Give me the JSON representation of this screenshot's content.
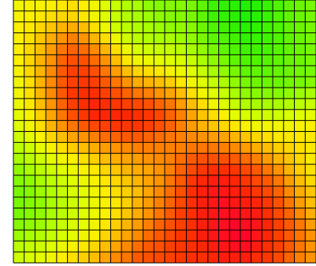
{
  "chart_data": {
    "type": "heatmap",
    "title": "",
    "xlabel": "",
    "ylabel": "",
    "grid": true,
    "legend": "none",
    "colorscale": [
      "#11f000",
      "#66f500",
      "#aaff00",
      "#ddff00",
      "#ffee00",
      "#ffc000",
      "#ff9000",
      "#ff5a00",
      "#ff2a00",
      "#ff0030"
    ],
    "value_range": [
      0,
      1
    ],
    "rows": 24,
    "cols": 28,
    "grid_color": "#000000",
    "values": [
      [
        0.4,
        0.42,
        0.42,
        0.44,
        0.46,
        0.48,
        0.44,
        0.4,
        0.34,
        0.28,
        0.24,
        0.22,
        0.18,
        0.16,
        0.16,
        0.16,
        0.14,
        0.1,
        0.06,
        0.04,
        0.03,
        0.02,
        0.03,
        0.05,
        0.08,
        0.1,
        0.12,
        0.14
      ],
      [
        0.42,
        0.44,
        0.46,
        0.48,
        0.5,
        0.5,
        0.46,
        0.4,
        0.34,
        0.28,
        0.24,
        0.22,
        0.2,
        0.18,
        0.16,
        0.16,
        0.14,
        0.1,
        0.06,
        0.04,
        0.03,
        0.02,
        0.03,
        0.05,
        0.08,
        0.1,
        0.12,
        0.14
      ],
      [
        0.44,
        0.46,
        0.5,
        0.54,
        0.58,
        0.6,
        0.56,
        0.48,
        0.38,
        0.3,
        0.26,
        0.24,
        0.22,
        0.2,
        0.18,
        0.18,
        0.16,
        0.12,
        0.08,
        0.06,
        0.04,
        0.03,
        0.04,
        0.06,
        0.08,
        0.1,
        0.12,
        0.14
      ],
      [
        0.44,
        0.48,
        0.54,
        0.6,
        0.66,
        0.7,
        0.66,
        0.58,
        0.48,
        0.38,
        0.3,
        0.26,
        0.24,
        0.22,
        0.22,
        0.2,
        0.18,
        0.14,
        0.1,
        0.08,
        0.06,
        0.04,
        0.05,
        0.06,
        0.08,
        0.1,
        0.12,
        0.14
      ],
      [
        0.44,
        0.5,
        0.56,
        0.64,
        0.72,
        0.76,
        0.74,
        0.68,
        0.58,
        0.48,
        0.38,
        0.32,
        0.3,
        0.28,
        0.28,
        0.26,
        0.22,
        0.18,
        0.14,
        0.1,
        0.08,
        0.06,
        0.06,
        0.07,
        0.09,
        0.1,
        0.12,
        0.14
      ],
      [
        0.44,
        0.5,
        0.58,
        0.66,
        0.76,
        0.8,
        0.8,
        0.74,
        0.66,
        0.56,
        0.46,
        0.4,
        0.38,
        0.36,
        0.34,
        0.32,
        0.28,
        0.22,
        0.18,
        0.14,
        0.1,
        0.08,
        0.08,
        0.09,
        0.1,
        0.11,
        0.12,
        0.14
      ],
      [
        0.42,
        0.5,
        0.58,
        0.68,
        0.78,
        0.84,
        0.84,
        0.8,
        0.72,
        0.64,
        0.56,
        0.5,
        0.48,
        0.46,
        0.42,
        0.38,
        0.34,
        0.28,
        0.22,
        0.18,
        0.14,
        0.1,
        0.1,
        0.1,
        0.11,
        0.12,
        0.13,
        0.14
      ],
      [
        0.4,
        0.48,
        0.58,
        0.68,
        0.78,
        0.84,
        0.86,
        0.84,
        0.78,
        0.72,
        0.66,
        0.6,
        0.58,
        0.56,
        0.52,
        0.46,
        0.4,
        0.34,
        0.28,
        0.22,
        0.18,
        0.14,
        0.12,
        0.12,
        0.12,
        0.13,
        0.14,
        0.16
      ],
      [
        0.4,
        0.48,
        0.58,
        0.68,
        0.78,
        0.86,
        0.88,
        0.88,
        0.84,
        0.8,
        0.76,
        0.72,
        0.7,
        0.66,
        0.62,
        0.56,
        0.48,
        0.4,
        0.34,
        0.28,
        0.22,
        0.18,
        0.16,
        0.16,
        0.16,
        0.18,
        0.2,
        0.22
      ],
      [
        0.38,
        0.46,
        0.56,
        0.66,
        0.76,
        0.84,
        0.88,
        0.9,
        0.88,
        0.86,
        0.84,
        0.82,
        0.8,
        0.76,
        0.72,
        0.64,
        0.56,
        0.48,
        0.4,
        0.34,
        0.28,
        0.24,
        0.22,
        0.22,
        0.22,
        0.24,
        0.26,
        0.28
      ],
      [
        0.36,
        0.42,
        0.52,
        0.62,
        0.72,
        0.8,
        0.86,
        0.9,
        0.9,
        0.9,
        0.9,
        0.88,
        0.86,
        0.82,
        0.76,
        0.7,
        0.62,
        0.54,
        0.48,
        0.42,
        0.36,
        0.32,
        0.3,
        0.3,
        0.3,
        0.32,
        0.34,
        0.36
      ],
      [
        0.34,
        0.4,
        0.48,
        0.58,
        0.66,
        0.72,
        0.78,
        0.82,
        0.84,
        0.86,
        0.86,
        0.86,
        0.84,
        0.8,
        0.76,
        0.7,
        0.64,
        0.58,
        0.54,
        0.5,
        0.46,
        0.42,
        0.4,
        0.4,
        0.4,
        0.4,
        0.42,
        0.44
      ],
      [
        0.3,
        0.36,
        0.42,
        0.5,
        0.56,
        0.62,
        0.66,
        0.7,
        0.74,
        0.76,
        0.78,
        0.78,
        0.76,
        0.74,
        0.72,
        0.7,
        0.68,
        0.66,
        0.64,
        0.62,
        0.58,
        0.54,
        0.5,
        0.48,
        0.46,
        0.46,
        0.46,
        0.46
      ],
      [
        0.26,
        0.3,
        0.36,
        0.42,
        0.48,
        0.52,
        0.56,
        0.6,
        0.64,
        0.66,
        0.68,
        0.7,
        0.7,
        0.7,
        0.7,
        0.7,
        0.72,
        0.72,
        0.72,
        0.7,
        0.68,
        0.64,
        0.6,
        0.56,
        0.52,
        0.5,
        0.48,
        0.46
      ],
      [
        0.22,
        0.26,
        0.3,
        0.36,
        0.4,
        0.44,
        0.48,
        0.52,
        0.56,
        0.6,
        0.62,
        0.64,
        0.66,
        0.68,
        0.7,
        0.74,
        0.78,
        0.8,
        0.8,
        0.8,
        0.78,
        0.74,
        0.7,
        0.64,
        0.58,
        0.54,
        0.5,
        0.46
      ],
      [
        0.18,
        0.22,
        0.26,
        0.3,
        0.34,
        0.38,
        0.42,
        0.46,
        0.5,
        0.54,
        0.58,
        0.6,
        0.62,
        0.66,
        0.7,
        0.76,
        0.82,
        0.86,
        0.88,
        0.88,
        0.86,
        0.82,
        0.78,
        0.72,
        0.66,
        0.58,
        0.52,
        0.48
      ],
      [
        0.16,
        0.18,
        0.22,
        0.26,
        0.3,
        0.34,
        0.38,
        0.42,
        0.46,
        0.5,
        0.54,
        0.58,
        0.62,
        0.66,
        0.72,
        0.78,
        0.86,
        0.9,
        0.92,
        0.92,
        0.9,
        0.86,
        0.82,
        0.78,
        0.72,
        0.64,
        0.56,
        0.5
      ],
      [
        0.14,
        0.16,
        0.2,
        0.24,
        0.28,
        0.32,
        0.36,
        0.4,
        0.44,
        0.48,
        0.52,
        0.56,
        0.62,
        0.68,
        0.74,
        0.8,
        0.88,
        0.92,
        0.94,
        0.94,
        0.92,
        0.9,
        0.86,
        0.82,
        0.76,
        0.68,
        0.6,
        0.54
      ],
      [
        0.14,
        0.16,
        0.18,
        0.22,
        0.26,
        0.3,
        0.34,
        0.38,
        0.42,
        0.46,
        0.52,
        0.58,
        0.64,
        0.7,
        0.76,
        0.82,
        0.88,
        0.92,
        0.94,
        0.96,
        0.94,
        0.92,
        0.9,
        0.86,
        0.8,
        0.72,
        0.64,
        0.56
      ],
      [
        0.14,
        0.16,
        0.18,
        0.22,
        0.26,
        0.3,
        0.34,
        0.38,
        0.42,
        0.48,
        0.54,
        0.6,
        0.66,
        0.72,
        0.78,
        0.84,
        0.88,
        0.92,
        0.94,
        0.96,
        0.96,
        0.94,
        0.92,
        0.88,
        0.82,
        0.76,
        0.68,
        0.6
      ],
      [
        0.16,
        0.18,
        0.2,
        0.24,
        0.28,
        0.32,
        0.36,
        0.4,
        0.46,
        0.52,
        0.58,
        0.64,
        0.7,
        0.76,
        0.8,
        0.84,
        0.88,
        0.92,
        0.94,
        0.96,
        0.98,
        0.96,
        0.94,
        0.9,
        0.84,
        0.78,
        0.72,
        0.64
      ],
      [
        0.2,
        0.22,
        0.24,
        0.28,
        0.32,
        0.36,
        0.4,
        0.44,
        0.5,
        0.56,
        0.62,
        0.68,
        0.74,
        0.78,
        0.82,
        0.86,
        0.88,
        0.92,
        0.94,
        0.96,
        0.98,
        0.98,
        0.94,
        0.9,
        0.84,
        0.78,
        0.72,
        0.66
      ],
      [
        0.26,
        0.28,
        0.3,
        0.34,
        0.38,
        0.42,
        0.46,
        0.5,
        0.56,
        0.62,
        0.68,
        0.74,
        0.78,
        0.8,
        0.84,
        0.86,
        0.88,
        0.9,
        0.92,
        0.94,
        0.96,
        0.96,
        0.92,
        0.88,
        0.84,
        0.78,
        0.72,
        0.66
      ],
      [
        0.3,
        0.32,
        0.36,
        0.4,
        0.44,
        0.48,
        0.52,
        0.56,
        0.62,
        0.68,
        0.72,
        0.78,
        0.8,
        0.82,
        0.84,
        0.86,
        0.88,
        0.88,
        0.9,
        0.92,
        0.92,
        0.92,
        0.88,
        0.86,
        0.82,
        0.76,
        0.7,
        0.66
      ]
    ]
  }
}
